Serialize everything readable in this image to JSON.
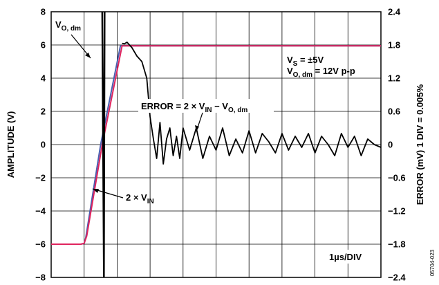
{
  "chart_data": {
    "type": "line",
    "title": "",
    "xlabel": "",
    "ylabel": "AMPLITUDE (V)",
    "ylabel_right": "ERROR (mV) 1 DIV = 0.005%",
    "ylim": [
      -8,
      8
    ],
    "ylim_right": [
      -2.4,
      2.4
    ],
    "y_ticks": [
      "8",
      "6",
      "4",
      "2",
      "0",
      "−2",
      "−4",
      "−6",
      "−8"
    ],
    "y_ticks_right": [
      "2.4",
      "1.8",
      "1.2",
      "0.6",
      "0",
      "−0.6",
      "−1.2",
      "−1.8",
      "−2.4"
    ],
    "x_divisions": 10,
    "x_units_per_div": "1µs/DIV",
    "grid": true,
    "series": [
      {
        "name": "V_O, dm",
        "color": "#4a5fb0",
        "x": [
          0,
          0.9,
          1.0,
          1.05,
          1.5,
          2.1,
          10
        ],
        "y": [
          -6,
          -6,
          -5.95,
          -5.6,
          0,
          5.95,
          5.95
        ]
      },
      {
        "name": "2 × V_IN",
        "color": "#e0245e",
        "x": [
          0,
          0.9,
          1.0,
          1.08,
          1.55,
          2.15,
          10
        ],
        "y": [
          -6,
          -6,
          -5.95,
          -5.5,
          0,
          5.95,
          5.95
        ]
      },
      {
        "name": "ERROR = 2 × V_IN − V_O, dm",
        "color": "#000000",
        "axis": "right",
        "x": [
          2.15,
          2.22,
          2.3,
          2.45,
          2.6,
          2.75,
          2.9,
          3.0,
          3.1,
          3.2,
          3.3,
          3.4,
          3.5,
          3.6,
          3.7,
          3.8,
          3.9,
          4.0,
          4.2,
          4.4,
          4.6,
          4.8,
          5.0,
          5.2,
          5.4,
          5.6,
          5.8,
          6.0,
          6.2,
          6.4,
          6.6,
          6.8,
          7.0,
          7.2,
          7.4,
          7.6,
          7.8,
          8.0,
          8.2,
          8.4,
          8.6,
          8.8,
          9.0,
          9.2,
          9.4,
          9.6,
          9.8,
          10.0
        ],
        "y": [
          1.83,
          1.82,
          1.85,
          1.75,
          1.6,
          1.5,
          1.2,
          0.5,
          0.1,
          -0.25,
          0.4,
          -0.35,
          0.1,
          0.3,
          -0.2,
          0.15,
          -0.25,
          0.3,
          -0.1,
          0.3,
          -0.25,
          0.15,
          -0.1,
          0.3,
          -0.2,
          0.1,
          -0.15,
          0.25,
          -0.15,
          0.2,
          0.05,
          -0.15,
          0.2,
          -0.1,
          0.15,
          -0.05,
          0.2,
          -0.15,
          0.15,
          0.0,
          -0.2,
          0.2,
          -0.05,
          0.15,
          -0.2,
          0.1,
          0.0,
          -0.05
        ]
      },
      {
        "name": "",
        "color": "#000000",
        "role": "input-edge",
        "x": [
          1.55,
          1.6,
          1.62,
          1.6
        ],
        "y": [
          8,
          -8,
          8,
          -8
        ]
      }
    ],
    "annotations": [
      {
        "id": "vodm",
        "main": "V",
        "sub": "O, dm",
        "rest": ""
      },
      {
        "id": "vs",
        "main": "V",
        "sub": "S",
        "rest": " = ±5V"
      },
      {
        "id": "vodm-pp",
        "main": "V",
        "sub": "O, dm",
        "rest": " = 12V p-p"
      },
      {
        "id": "error",
        "main": "ERROR = 2 × V",
        "sub": "IN",
        "rest": " − V",
        "sub2": "O, dm"
      },
      {
        "id": "twovin",
        "main": "2 × V",
        "sub": "IN",
        "rest": ""
      }
    ],
    "time_per_div": "1µs/DIV",
    "figure_id": "05704-023"
  }
}
